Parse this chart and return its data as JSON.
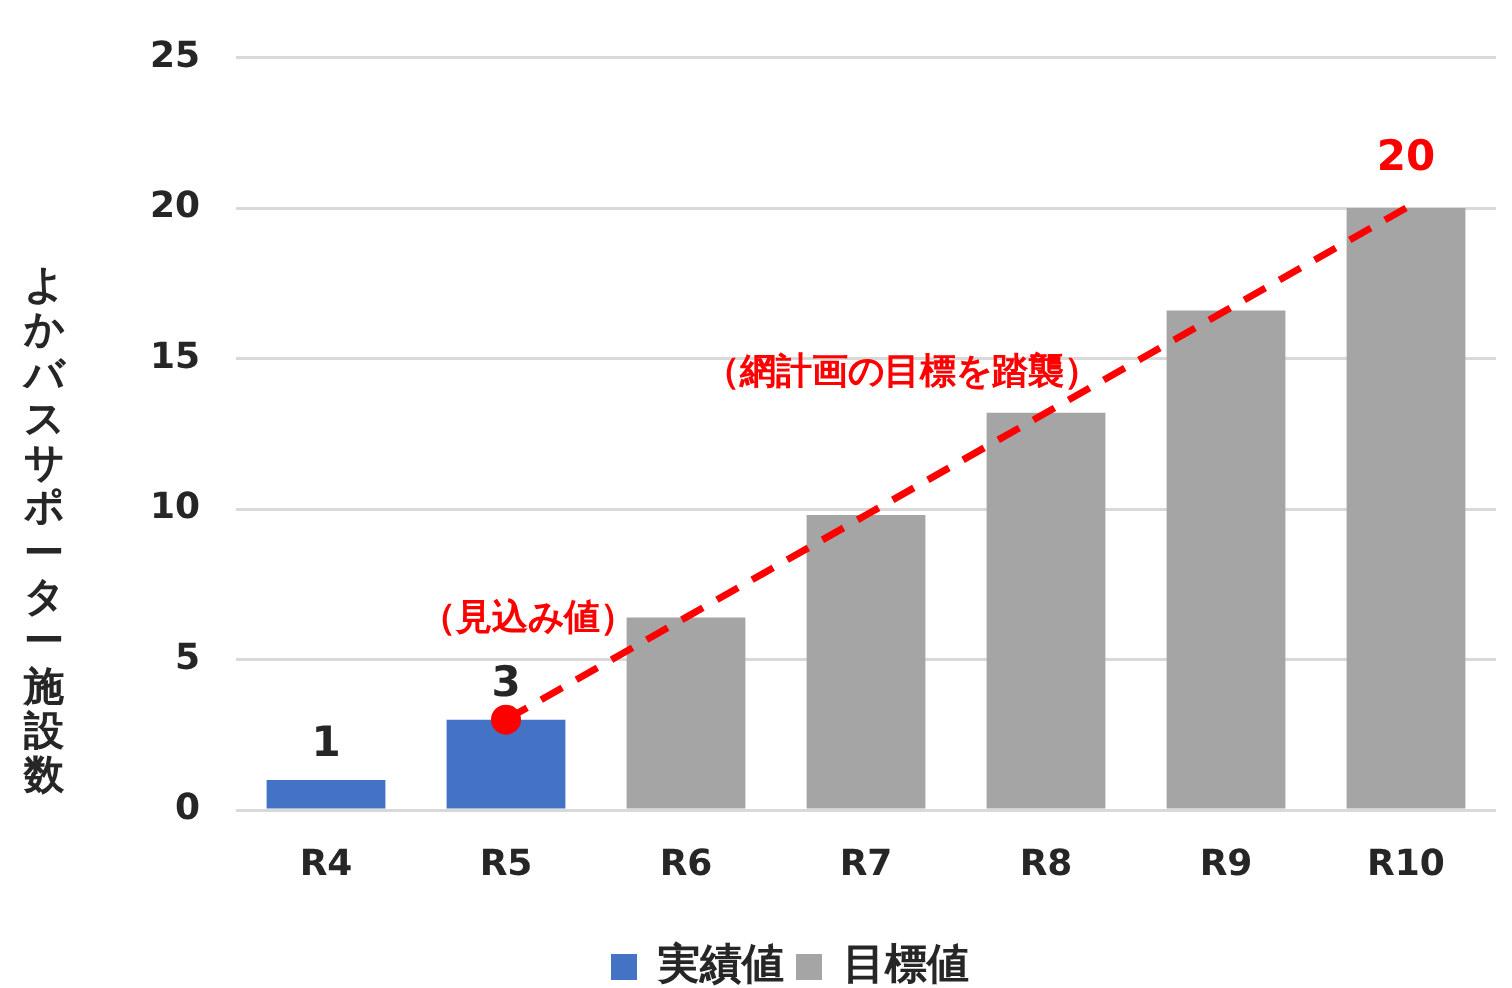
{
  "chart_data": {
    "type": "bar",
    "categories": [
      "R4",
      "R5",
      "R6",
      "R7",
      "R8",
      "R9",
      "R10"
    ],
    "series": [
      {
        "name": "実績値",
        "color": "#4472c4",
        "values": [
          1,
          3,
          null,
          null,
          null,
          null,
          null
        ],
        "value_labels": [
          "1",
          "3",
          null,
          null,
          null,
          null,
          null
        ]
      },
      {
        "name": "目標値",
        "color": "#a5a5a5",
        "values": [
          null,
          null,
          6.4,
          9.8,
          13.2,
          16.6,
          20
        ]
      },
      {
        "type": "line",
        "color": "#ff0000",
        "values": [
          null,
          3,
          6.4,
          9.8,
          13.2,
          16.6,
          20
        ],
        "line_style": "dashed",
        "marker": "none",
        "value_labels": [
          null,
          null,
          null,
          null,
          null,
          null,
          "20"
        ]
      },
      {
        "type": "scatter",
        "color": "#ff0000",
        "x": [
          "R5"
        ],
        "values": [
          3
        ],
        "marker": "circle"
      }
    ],
    "ylabel": "よかバスサポーター施設数",
    "ylim": [
      0,
      25
    ],
    "yticks": [
      0,
      5,
      10,
      15,
      20,
      25
    ],
    "grid": "y",
    "legend": "bottom",
    "annotations": [
      "（見込み値）",
      "（網計画の目標を踏襲）"
    ]
  }
}
